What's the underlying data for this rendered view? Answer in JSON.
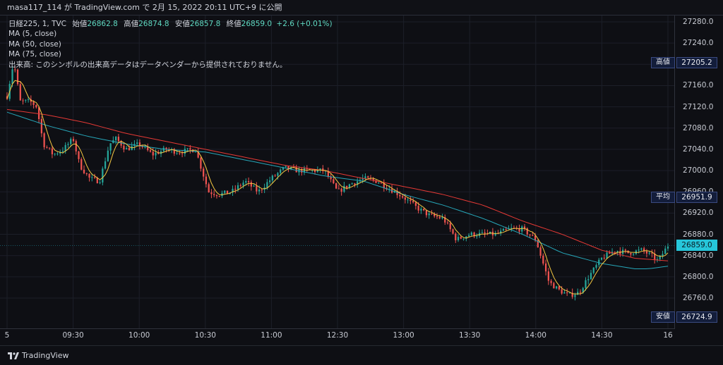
{
  "header": {
    "text": "masa117_114 が TradingView.com で 2月 15, 2022 20:11 UTC+9 に公開"
  },
  "legend": {
    "symbol": "日経225, 1, TVC",
    "open_label": "始値",
    "open_value": "26862.8",
    "high_label": "高値",
    "high_value": "26874.8",
    "low_label": "安値",
    "low_value": "26857.8",
    "close_label": "終値",
    "close_value": "26859.0",
    "change": "+2.6 (+0.01%)",
    "ma5": "MA (5, close)",
    "ma50": "MA (50, close)",
    "ma75": "MA (75, close)",
    "volume_note": "出来高: このシンボルの出来高データはデータベンダーから提供されておりません。"
  },
  "markers": {
    "high_label": "高値",
    "high_value": "27205.2",
    "avg_label": "平均",
    "avg_value": "26951.9",
    "low_label": "安値",
    "low_value": "26724.9",
    "current_value": "26859.0"
  },
  "brand": "TradingView",
  "colors": {
    "up": "#26a69a",
    "down": "#ef5350",
    "ma5": "#f5c842",
    "ma50": "#e53935",
    "ma75": "#26a6b8",
    "current": "#26c6da"
  },
  "chart_data": {
    "type": "candlestick",
    "title": "日経225, 1, TVC",
    "ylim": [
      26720,
      27300
    ],
    "y_ticks": [
      27280.0,
      27240.0,
      27200.0,
      27160.0,
      27120.0,
      27080.0,
      27040.0,
      27000.0,
      26960.0,
      26920.0,
      26880.0,
      26840.0,
      26800.0,
      26760.0
    ],
    "y_tick_labels": [
      "27280.0",
      "27240.0",
      "27200.0",
      "27160.0",
      "27120.0",
      "27080.0",
      "27040.0",
      "27000.0",
      "26960.0",
      "26920.0",
      "26880.0",
      "26840.0",
      "26800.0",
      "26760.0"
    ],
    "x_tick_labels": [
      "5",
      "09:30",
      "10:00",
      "10:30",
      "11:00",
      "12:30",
      "13:00",
      "13:30",
      "14:00",
      "14:30",
      "16"
    ],
    "x_tick_positions": [
      0,
      0.1,
      0.2,
      0.3,
      0.4,
      0.5,
      0.6,
      0.7,
      0.8,
      0.9,
      1.0
    ],
    "keypoints": [
      [
        0.0,
        27140
      ],
      [
        0.01,
        27205
      ],
      [
        0.02,
        27130
      ],
      [
        0.035,
        27130
      ],
      [
        0.045,
        27120
      ],
      [
        0.055,
        27050
      ],
      [
        0.07,
        27030
      ],
      [
        0.085,
        27040
      ],
      [
        0.1,
        27060
      ],
      [
        0.11,
        27010
      ],
      [
        0.125,
        26985
      ],
      [
        0.14,
        26980
      ],
      [
        0.155,
        27050
      ],
      [
        0.165,
        27060
      ],
      [
        0.18,
        27040
      ],
      [
        0.2,
        27050
      ],
      [
        0.22,
        27030
      ],
      [
        0.24,
        27040
      ],
      [
        0.26,
        27035
      ],
      [
        0.285,
        27040
      ],
      [
        0.305,
        26960
      ],
      [
        0.32,
        26955
      ],
      [
        0.34,
        26960
      ],
      [
        0.36,
        26980
      ],
      [
        0.38,
        26960
      ],
      [
        0.4,
        26985
      ],
      [
        0.42,
        27005
      ],
      [
        0.44,
        27000
      ],
      [
        0.46,
        27000
      ],
      [
        0.48,
        27000
      ],
      [
        0.5,
        26960
      ],
      [
        0.52,
        26975
      ],
      [
        0.54,
        26985
      ],
      [
        0.56,
        26980
      ],
      [
        0.58,
        26965
      ],
      [
        0.6,
        26950
      ],
      [
        0.62,
        26930
      ],
      [
        0.64,
        26915
      ],
      [
        0.66,
        26910
      ],
      [
        0.68,
        26870
      ],
      [
        0.7,
        26880
      ],
      [
        0.72,
        26880
      ],
      [
        0.74,
        26880
      ],
      [
        0.76,
        26890
      ],
      [
        0.78,
        26890
      ],
      [
        0.8,
        26870
      ],
      [
        0.82,
        26790
      ],
      [
        0.835,
        26775
      ],
      [
        0.85,
        26765
      ],
      [
        0.865,
        26770
      ],
      [
        0.88,
        26800
      ],
      [
        0.9,
        26835
      ],
      [
        0.92,
        26850
      ],
      [
        0.94,
        26845
      ],
      [
        0.96,
        26850
      ],
      [
        0.975,
        26840
      ],
      [
        0.985,
        26830
      ],
      [
        1.0,
        26859
      ]
    ],
    "candle_count": 250,
    "ma50_keypoints": [
      [
        0.0,
        27115
      ],
      [
        0.06,
        27105
      ],
      [
        0.12,
        27090
      ],
      [
        0.18,
        27070
      ],
      [
        0.24,
        27055
      ],
      [
        0.3,
        27040
      ],
      [
        0.36,
        27025
      ],
      [
        0.42,
        27010
      ],
      [
        0.48,
        27000
      ],
      [
        0.54,
        26985
      ],
      [
        0.6,
        26970
      ],
      [
        0.66,
        26955
      ],
      [
        0.72,
        26935
      ],
      [
        0.78,
        26905
      ],
      [
        0.84,
        26880
      ],
      [
        0.9,
        26850
      ],
      [
        0.95,
        26835
      ],
      [
        1.0,
        26830
      ]
    ],
    "ma75_keypoints": [
      [
        0.0,
        27110
      ],
      [
        0.06,
        27085
      ],
      [
        0.12,
        27065
      ],
      [
        0.18,
        27050
      ],
      [
        0.24,
        27040
      ],
      [
        0.3,
        27035
      ],
      [
        0.36,
        27020
      ],
      [
        0.42,
        27005
      ],
      [
        0.48,
        26990
      ],
      [
        0.54,
        26980
      ],
      [
        0.6,
        26955
      ],
      [
        0.66,
        26935
      ],
      [
        0.72,
        26910
      ],
      [
        0.78,
        26880
      ],
      [
        0.84,
        26845
      ],
      [
        0.9,
        26825
      ],
      [
        0.95,
        26815
      ],
      [
        0.97,
        26815
      ],
      [
        1.0,
        26820
      ]
    ]
  }
}
